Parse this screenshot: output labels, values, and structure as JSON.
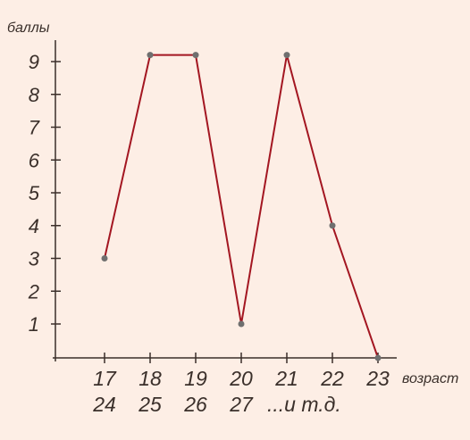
{
  "chart_data": {
    "type": "line",
    "ylabel": "баллы",
    "xlabel": "возраст",
    "categories": [
      "17",
      "18",
      "19",
      "20",
      "21",
      "22",
      "23"
    ],
    "x_tick_labels_row2": [
      "24",
      "25",
      "26",
      "27",
      "...и т.д."
    ],
    "y_ticks": [
      1,
      2,
      3,
      4,
      5,
      6,
      7,
      8,
      9
    ],
    "ylim": [
      0,
      9
    ],
    "series": [
      {
        "values": [
          3,
          9.2,
          9.2,
          1,
          9.2,
          4,
          0
        ]
      }
    ],
    "grid": false,
    "line_color": "#a31621",
    "point_color": "#6f6f6f",
    "axis_color": "#3a2f2a",
    "background": "#fdeee5"
  }
}
